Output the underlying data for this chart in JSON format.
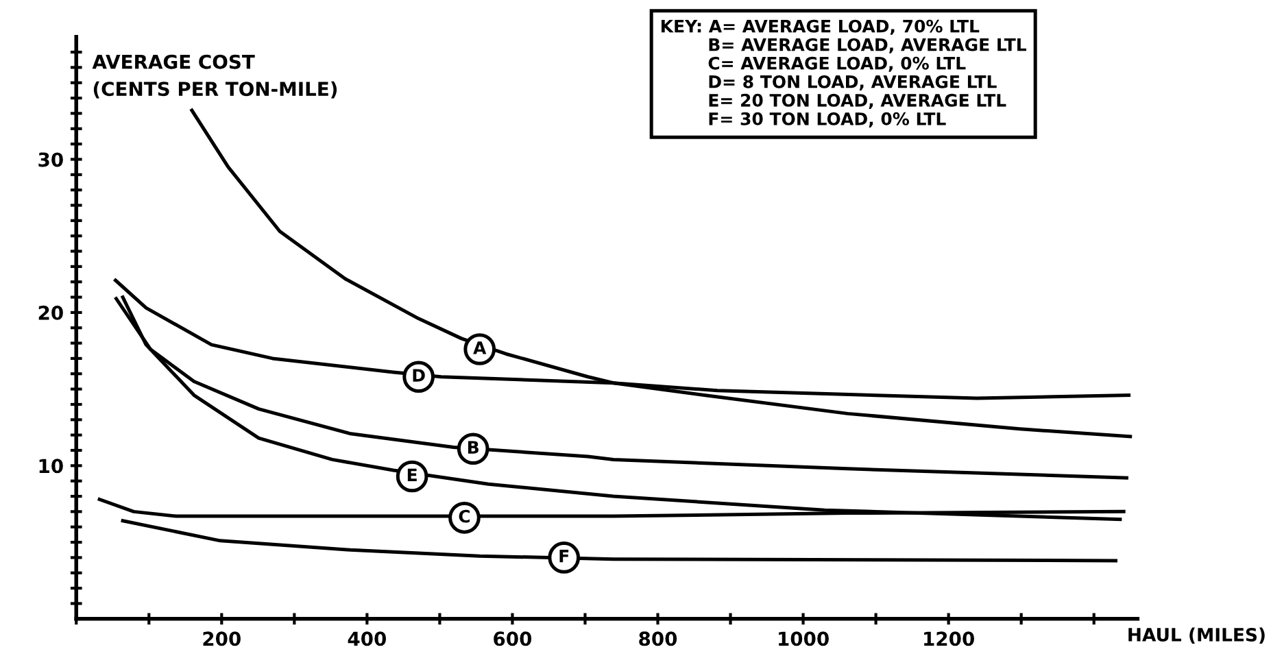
{
  "chart_data": {
    "type": "line",
    "xlabel": "HAUL (MILES)",
    "ylabel": "AVERAGE COST\n(CENTS PER TON-MILE)",
    "xlim": [
      0,
      1460
    ],
    "ylim": [
      0,
      38
    ],
    "xticks": [
      {
        "value": 0,
        "label": null
      },
      {
        "value": 100,
        "label": null
      },
      200,
      {
        "value": 300,
        "label": null
      },
      400,
      {
        "value": 500,
        "label": null
      },
      600,
      {
        "value": 700,
        "label": null
      },
      800,
      {
        "value": 900,
        "label": null
      },
      1000,
      {
        "value": 1100,
        "label": null
      },
      1200,
      {
        "value": 1300,
        "label": null
      },
      {
        "value": 1400,
        "label": null
      }
    ],
    "yticks": [
      {
        "value": 1,
        "label": null
      },
      {
        "value": 2,
        "label": null
      },
      {
        "value": 3,
        "label": null
      },
      {
        "value": 4,
        "label": null
      },
      {
        "value": 5,
        "label": null
      },
      {
        "value": 6,
        "label": null
      },
      {
        "value": 7,
        "label": null
      },
      {
        "value": 8,
        "label": null
      },
      {
        "value": 9,
        "label": null
      },
      10,
      {
        "value": 11,
        "label": null
      },
      {
        "value": 12,
        "label": null
      },
      {
        "value": 13,
        "label": null
      },
      {
        "value": 14,
        "label": null
      },
      {
        "value": 15,
        "label": null
      },
      {
        "value": 16,
        "label": null
      },
      {
        "value": 17,
        "label": null
      },
      {
        "value": 18,
        "label": null
      },
      {
        "value": 19,
        "label": null
      },
      20,
      {
        "value": 21,
        "label": null
      },
      {
        "value": 22,
        "label": null
      },
      {
        "value": 23,
        "label": null
      },
      {
        "value": 24,
        "label": null
      },
      {
        "value": 25,
        "label": null
      },
      {
        "value": 26,
        "label": null
      },
      {
        "value": 27,
        "label": null
      },
      {
        "value": 28,
        "label": null
      },
      {
        "value": 29,
        "label": null
      },
      30,
      {
        "value": 31,
        "label": null
      },
      {
        "value": 32,
        "label": null
      },
      {
        "value": 33,
        "label": null
      },
      {
        "value": 34,
        "label": null
      },
      {
        "value": 35,
        "label": null
      },
      {
        "value": 36,
        "label": null
      },
      {
        "value": 37,
        "label": null
      }
    ],
    "grid": false,
    "marker": "none",
    "line_style": "solid",
    "series": [
      {
        "color": "#000000",
        "x": [
          159,
          209,
          280,
          370,
          471,
          530,
          591,
          704,
          739,
          864,
          1061,
          1298,
          1450
        ],
        "values": [
          33.2,
          29.5,
          25.3,
          22.2,
          19.6,
          18.3,
          17.3,
          15.8,
          15.4,
          14.6,
          13.4,
          12.4,
          11.9
        ]
      },
      {
        "color": "#000000",
        "x": [
          55,
          102,
          162,
          251,
          376,
          519,
          704,
          739,
          1061,
          1445
        ],
        "values": [
          20.9,
          17.6,
          15.5,
          13.7,
          12.1,
          11.2,
          10.6,
          10.4,
          9.8,
          9.2
        ]
      },
      {
        "color": "#000000",
        "x": [
          32,
          79,
          138,
          739,
          1061,
          1441
        ],
        "values": [
          7.8,
          7.0,
          6.7,
          6.7,
          6.9,
          7.0
        ]
      },
      {
        "color": "#000000",
        "x": [
          54,
          96,
          186,
          270,
          436,
          502,
          739,
          882,
          1239,
          1448
        ],
        "values": [
          22.1,
          20.3,
          17.9,
          17.0,
          16.1,
          15.8,
          15.4,
          14.9,
          14.4,
          14.6
        ]
      },
      {
        "color": "#000000",
        "x": [
          64,
          96,
          162,
          251,
          352,
          436,
          567,
          739,
          1030,
          1436
        ],
        "values": [
          21.0,
          17.9,
          14.6,
          11.8,
          10.4,
          9.7,
          8.8,
          8.0,
          7.1,
          6.5
        ]
      },
      {
        "color": "#000000",
        "x": [
          64,
          198,
          377,
          555,
          739,
          1430
        ],
        "values": [
          6.4,
          5.1,
          4.5,
          4.1,
          3.9,
          3.8
        ]
      }
    ],
    "annotations": [
      {
        "text": "A",
        "x": 555,
        "y": 17.6
      },
      {
        "text": "B",
        "x": 546,
        "y": 11.1
      },
      {
        "text": "C",
        "x": 534,
        "y": 6.6
      },
      {
        "text": "D",
        "x": 471,
        "y": 15.8
      },
      {
        "text": "E",
        "x": 462,
        "y": 9.3
      },
      {
        "text": "F",
        "x": 671,
        "y": 4.0
      },
      "KEY: A= AVERAGE LOAD, 70% LTL\n        B= AVERAGE LOAD, AVERAGE LTL\n        C= AVERAGE LOAD, 0% LTL\n        D= 8 TON LOAD, AVERAGE LTL\n        E= 20 TON LOAD, AVERAGE LTL\n        F= 30 TON LOAD, 0% LTL"
    ]
  }
}
